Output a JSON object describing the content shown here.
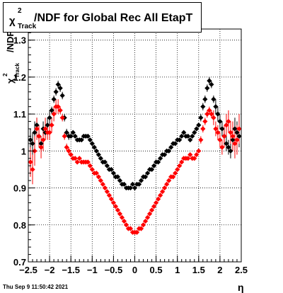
{
  "title": {
    "chi": "χ",
    "sup": "2",
    "sub": "Track",
    "main": "/NDF for Global Rec All EtapT"
  },
  "ylabel": {
    "chi": "χ",
    "sup": "2",
    "sub": "Track",
    "main": "/NDF"
  },
  "xlabel": "η",
  "timestamp": "Thu Sep  9 11:50:42 2021",
  "chart_data": {
    "type": "scatter",
    "xlim": [
      -2.5,
      2.5
    ],
    "ylim": [
      0.7,
      1.33
    ],
    "xticks": [
      -2.5,
      -2,
      -1.5,
      -1,
      -0.5,
      0,
      0.5,
      1,
      1.5,
      2,
      2.5
    ],
    "xtick_labels": [
      "−2.5",
      "−2",
      "−1.5",
      "−1",
      "−0.5",
      "0",
      "0.5",
      "1",
      "1.5",
      "2",
      "2.5"
    ],
    "yticks": [
      0.7,
      0.8,
      0.9,
      1.0,
      1.1,
      1.2,
      1.3
    ],
    "ytick_labels": [
      "0.7",
      "0.8",
      "0.9",
      "1",
      "1.1",
      "1.2",
      "1.3"
    ],
    "grid": true,
    "series": [
      {
        "color": "#000000",
        "x": [
          -2.45,
          -2.4,
          -2.35,
          -2.3,
          -2.25,
          -2.2,
          -2.15,
          -2.1,
          -2.05,
          -2.0,
          -1.95,
          -1.9,
          -1.85,
          -1.8,
          -1.75,
          -1.7,
          -1.65,
          -1.6,
          -1.55,
          -1.5,
          -1.45,
          -1.4,
          -1.35,
          -1.3,
          -1.25,
          -1.2,
          -1.15,
          -1.1,
          -1.05,
          -1.0,
          -0.95,
          -0.9,
          -0.85,
          -0.8,
          -0.75,
          -0.7,
          -0.65,
          -0.6,
          -0.55,
          -0.5,
          -0.45,
          -0.4,
          -0.35,
          -0.3,
          -0.25,
          -0.2,
          -0.15,
          -0.1,
          -0.05,
          0.0,
          0.05,
          0.1,
          0.15,
          0.2,
          0.25,
          0.3,
          0.35,
          0.4,
          0.45,
          0.5,
          0.55,
          0.6,
          0.65,
          0.7,
          0.75,
          0.8,
          0.85,
          0.9,
          0.95,
          1.0,
          1.05,
          1.1,
          1.15,
          1.2,
          1.25,
          1.3,
          1.35,
          1.4,
          1.45,
          1.5,
          1.55,
          1.6,
          1.65,
          1.7,
          1.75,
          1.8,
          1.85,
          1.9,
          1.95,
          2.0,
          2.05,
          2.1,
          2.15,
          2.2,
          2.25,
          2.3,
          2.35,
          2.4,
          2.45
        ],
        "y": [
          1.03,
          1.02,
          1.05,
          1.07,
          1.04,
          1.02,
          1.06,
          1.05,
          1.07,
          1.09,
          1.11,
          1.14,
          1.16,
          1.18,
          1.17,
          1.15,
          1.09,
          1.05,
          1.04,
          1.04,
          1.05,
          1.04,
          1.03,
          1.03,
          1.03,
          1.04,
          1.04,
          1.04,
          1.03,
          1.02,
          1.01,
          1.0,
          0.99,
          0.98,
          0.97,
          0.97,
          0.96,
          0.95,
          0.95,
          0.94,
          0.93,
          0.93,
          0.92,
          0.91,
          0.91,
          0.9,
          0.9,
          0.9,
          0.91,
          0.9,
          0.91,
          0.91,
          0.92,
          0.93,
          0.93,
          0.94,
          0.95,
          0.95,
          0.96,
          0.97,
          0.97,
          0.98,
          0.99,
          0.99,
          1.0,
          1.0,
          1.01,
          1.02,
          1.02,
          1.03,
          1.03,
          1.04,
          1.05,
          1.04,
          1.04,
          1.03,
          1.04,
          1.05,
          1.06,
          1.07,
          1.09,
          1.12,
          1.14,
          1.17,
          1.19,
          1.18,
          1.14,
          1.12,
          1.1,
          1.08,
          1.06,
          1.04,
          1.02,
          1.01,
          1.0,
          1.03,
          1.06,
          1.05,
          1.04
        ],
        "yerr": [
          0.03,
          0.03,
          0.03,
          0.02,
          0.02,
          0.02,
          0.02,
          0.02,
          0.02,
          0.02,
          0.01,
          0.01,
          0.01,
          0.01,
          0.01,
          0.01,
          0.01,
          0.01,
          0.01,
          0.005,
          0.005,
          0.005,
          0.005,
          0.005,
          0.005,
          0.005,
          0.005,
          0.005,
          0.005,
          0.005,
          0.005,
          0.005,
          0.005,
          0.005,
          0.005,
          0.005,
          0.005,
          0.005,
          0.005,
          0.005,
          0.005,
          0.005,
          0.005,
          0.005,
          0.005,
          0.005,
          0.005,
          0.005,
          0.005,
          0.005,
          0.005,
          0.005,
          0.005,
          0.005,
          0.005,
          0.005,
          0.005,
          0.005,
          0.005,
          0.005,
          0.005,
          0.005,
          0.005,
          0.005,
          0.005,
          0.005,
          0.005,
          0.005,
          0.005,
          0.005,
          0.005,
          0.005,
          0.005,
          0.005,
          0.005,
          0.005,
          0.005,
          0.005,
          0.005,
          0.005,
          0.01,
          0.01,
          0.01,
          0.01,
          0.01,
          0.01,
          0.01,
          0.02,
          0.02,
          0.02,
          0.02,
          0.02,
          0.02,
          0.02,
          0.02,
          0.03,
          0.03,
          0.03,
          0.03
        ]
      },
      {
        "color": "#ff0000",
        "x": [
          -2.45,
          -2.4,
          -2.35,
          -2.3,
          -2.25,
          -2.2,
          -2.15,
          -2.1,
          -2.05,
          -2.0,
          -1.95,
          -1.9,
          -1.85,
          -1.8,
          -1.75,
          -1.7,
          -1.65,
          -1.6,
          -1.55,
          -1.5,
          -1.45,
          -1.4,
          -1.35,
          -1.3,
          -1.25,
          -1.2,
          -1.15,
          -1.1,
          -1.05,
          -1.0,
          -0.95,
          -0.9,
          -0.85,
          -0.8,
          -0.75,
          -0.7,
          -0.65,
          -0.6,
          -0.55,
          -0.5,
          -0.45,
          -0.4,
          -0.35,
          -0.3,
          -0.25,
          -0.2,
          -0.15,
          -0.1,
          -0.05,
          0.0,
          0.05,
          0.1,
          0.15,
          0.2,
          0.25,
          0.3,
          0.35,
          0.4,
          0.45,
          0.5,
          0.55,
          0.6,
          0.65,
          0.7,
          0.75,
          0.8,
          0.85,
          0.9,
          0.95,
          1.0,
          1.05,
          1.1,
          1.15,
          1.2,
          1.25,
          1.3,
          1.35,
          1.4,
          1.45,
          1.5,
          1.55,
          1.6,
          1.65,
          1.7,
          1.75,
          1.8,
          1.85,
          1.9,
          1.95,
          2.0,
          2.05,
          2.1,
          2.15,
          2.2,
          2.25,
          2.3,
          2.35,
          2.4,
          2.45
        ],
        "y": [
          0.97,
          0.95,
          1.0,
          1.06,
          1.04,
          1.01,
          1.03,
          1.06,
          1.05,
          1.05,
          1.07,
          1.1,
          1.12,
          1.12,
          1.11,
          1.09,
          1.04,
          1.01,
          1.0,
          0.99,
          0.98,
          0.98,
          0.97,
          0.98,
          0.97,
          0.97,
          0.97,
          0.97,
          0.96,
          0.95,
          0.94,
          0.94,
          0.93,
          0.92,
          0.91,
          0.9,
          0.89,
          0.88,
          0.87,
          0.86,
          0.85,
          0.84,
          0.83,
          0.82,
          0.81,
          0.8,
          0.79,
          0.79,
          0.78,
          0.78,
          0.78,
          0.79,
          0.79,
          0.8,
          0.81,
          0.82,
          0.83,
          0.84,
          0.85,
          0.86,
          0.87,
          0.88,
          0.89,
          0.9,
          0.91,
          0.92,
          0.93,
          0.93,
          0.94,
          0.95,
          0.96,
          0.97,
          0.98,
          0.98,
          0.98,
          0.99,
          0.98,
          0.98,
          0.99,
          1.0,
          1.03,
          1.06,
          1.08,
          1.1,
          1.11,
          1.1,
          1.09,
          1.06,
          1.05,
          1.03,
          1.01,
          1.04,
          1.07,
          1.08,
          1.05,
          1.04,
          1.02,
          1.03,
          1.06
        ],
        "yerr": [
          0.04,
          0.04,
          0.04,
          0.03,
          0.03,
          0.03,
          0.03,
          0.03,
          0.02,
          0.02,
          0.02,
          0.02,
          0.02,
          0.02,
          0.01,
          0.01,
          0.01,
          0.01,
          0.01,
          0.005,
          0.005,
          0.005,
          0.005,
          0.005,
          0.005,
          0.005,
          0.005,
          0.005,
          0.005,
          0.005,
          0.005,
          0.005,
          0.005,
          0.005,
          0.005,
          0.005,
          0.005,
          0.005,
          0.005,
          0.005,
          0.005,
          0.005,
          0.005,
          0.005,
          0.005,
          0.005,
          0.005,
          0.005,
          0.005,
          0.005,
          0.005,
          0.005,
          0.005,
          0.005,
          0.005,
          0.005,
          0.005,
          0.005,
          0.005,
          0.005,
          0.005,
          0.005,
          0.005,
          0.005,
          0.005,
          0.005,
          0.005,
          0.005,
          0.005,
          0.005,
          0.005,
          0.005,
          0.005,
          0.005,
          0.005,
          0.005,
          0.005,
          0.005,
          0.005,
          0.005,
          0.01,
          0.01,
          0.01,
          0.01,
          0.01,
          0.01,
          0.02,
          0.02,
          0.02,
          0.02,
          0.02,
          0.03,
          0.03,
          0.03,
          0.03,
          0.04,
          0.04,
          0.04,
          0.04
        ]
      }
    ]
  }
}
